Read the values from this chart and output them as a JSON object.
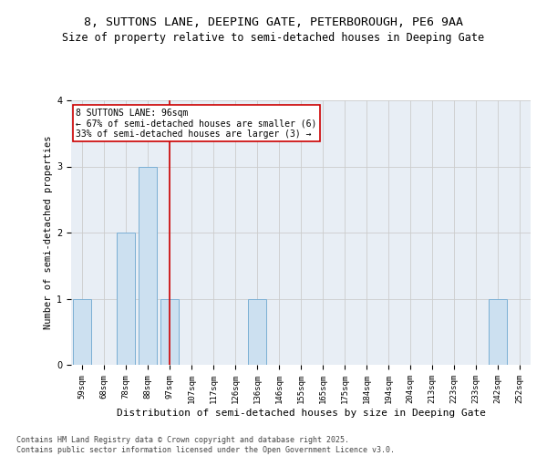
{
  "title_line1": "8, SUTTONS LANE, DEEPING GATE, PETERBOROUGH, PE6 9AA",
  "title_line2": "Size of property relative to semi-detached houses in Deeping Gate",
  "xlabel": "Distribution of semi-detached houses by size in Deeping Gate",
  "ylabel": "Number of semi-detached properties",
  "categories": [
    "59sqm",
    "68sqm",
    "78sqm",
    "88sqm",
    "97sqm",
    "107sqm",
    "117sqm",
    "126sqm",
    "136sqm",
    "146sqm",
    "155sqm",
    "165sqm",
    "175sqm",
    "184sqm",
    "194sqm",
    "204sqm",
    "213sqm",
    "223sqm",
    "233sqm",
    "242sqm",
    "252sqm"
  ],
  "values": [
    1,
    0,
    2,
    3,
    1,
    0,
    0,
    0,
    1,
    0,
    0,
    0,
    0,
    0,
    0,
    0,
    0,
    0,
    0,
    1,
    0
  ],
  "highlight_index": 4,
  "bar_color": "#cce0f0",
  "bar_edge_color": "#7bafd4",
  "highlight_line_color": "#cc0000",
  "annotation_text": "8 SUTTONS LANE: 96sqm\n← 67% of semi-detached houses are smaller (6)\n33% of semi-detached houses are larger (3) →",
  "annotation_box_color": "#ffffff",
  "annotation_box_edge_color": "#cc0000",
  "ylim": [
    0,
    4
  ],
  "yticks": [
    0,
    1,
    2,
    3,
    4
  ],
  "footer_text": "Contains HM Land Registry data © Crown copyright and database right 2025.\nContains public sector information licensed under the Open Government Licence v3.0.",
  "grid_color": "#cccccc",
  "bg_color": "#e8eef5",
  "title_fontsize": 9.5,
  "subtitle_fontsize": 8.5,
  "axis_label_fontsize": 8,
  "tick_fontsize": 6.5,
  "footer_fontsize": 6,
  "annotation_fontsize": 7,
  "ylabel_fontsize": 7.5
}
